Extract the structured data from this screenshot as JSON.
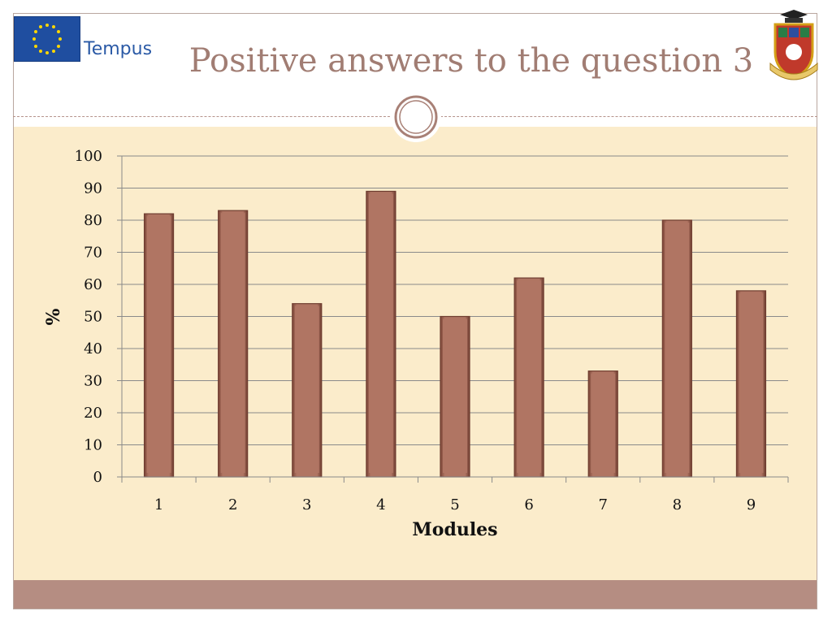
{
  "header": {
    "title": "Positive answers to the question 3",
    "logo_text": "Tempus"
  },
  "colors": {
    "bar_fill": "#b07563",
    "bar_edge": "#6f3d30",
    "chart_bg": "#fbeccb",
    "footer": "#b58d82",
    "title": "#a17d73"
  },
  "chart_data": {
    "type": "bar",
    "categories": [
      "1",
      "2",
      "3",
      "4",
      "5",
      "6",
      "7",
      "8",
      "9"
    ],
    "values": [
      82,
      83,
      54,
      89,
      50,
      62,
      33,
      80,
      58
    ],
    "xlabel": "Modules",
    "ylabel": "%",
    "ylim": [
      0,
      100
    ],
    "yticks": [
      0,
      10,
      20,
      30,
      40,
      50,
      60,
      70,
      80,
      90,
      100
    ],
    "grid": true,
    "legend": "none"
  }
}
